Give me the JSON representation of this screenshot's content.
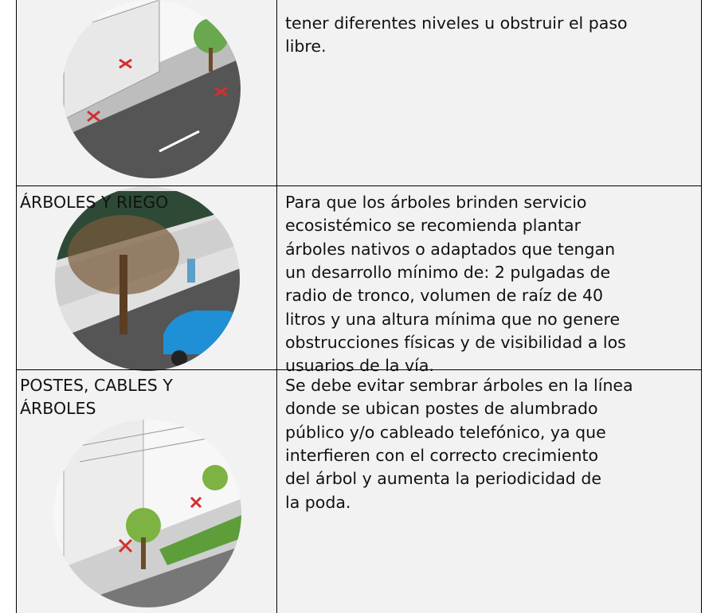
{
  "table": {
    "rows": [
      {
        "text_lines": [
          "tener diferentes niveles u obstruir el paso",
          "libre."
        ]
      },
      {
        "label_lines": [
          "ÁRBOLES Y RIEGO"
        ],
        "text_lines": [
          "Para que los árboles brinden servicio",
          "ecosistémico se recomienda plantar",
          "árboles nativos o adaptados que tengan",
          "un desarrollo mínimo de: 2 pulgadas de",
          "radio de tronco, volumen de raíz de 40",
          "litros y una altura mínima que no genere",
          "obstrucciones físicas y de visibilidad a los",
          "usuarios de la vía."
        ]
      },
      {
        "label_lines": [
          "POSTES, CABLES Y",
          "ÁRBOLES"
        ],
        "text_lines": [
          "Se debe evitar sembrar árboles en la línea",
          "donde se ubican postes de alumbrado",
          "público y/o cableado telefónico, ya que",
          "interfieren con el correcto crecimiento",
          "del árbol y aumenta la periodicidad de",
          "la poda."
        ]
      }
    ]
  }
}
